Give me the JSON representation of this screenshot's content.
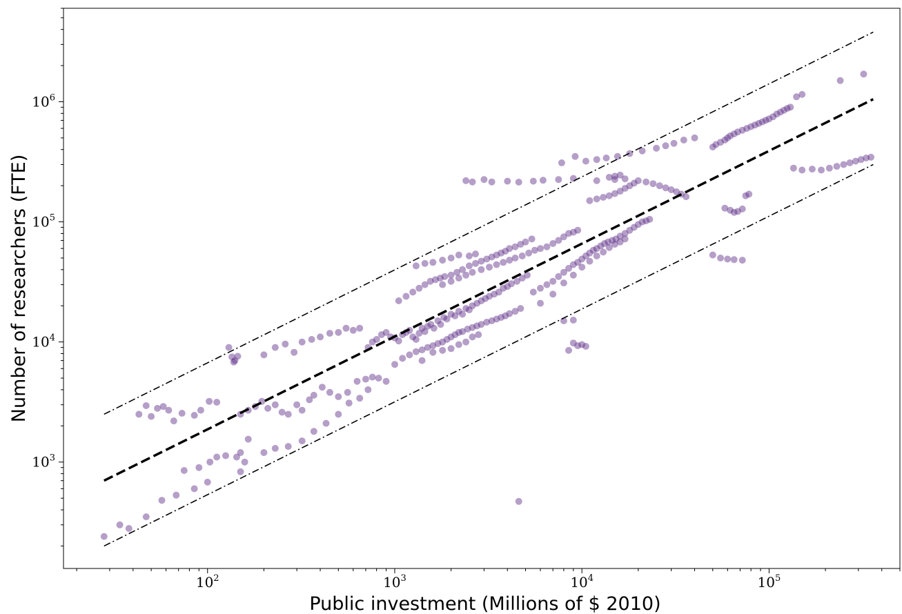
{
  "chart_data": {
    "type": "scatter",
    "title": "",
    "xlabel": "Public investment (Millions of $ 2010)",
    "ylabel": "Number of researchers (FTE)",
    "xscale": "log",
    "yscale": "log",
    "xlim": [
      17,
      500000
    ],
    "ylim": [
      130,
      6000000
    ],
    "x_ticks": [
      {
        "value": 100,
        "base": "10",
        "exp": "2"
      },
      {
        "value": 1000,
        "base": "10",
        "exp": "3"
      },
      {
        "value": 10000,
        "base": "10",
        "exp": "4"
      },
      {
        "value": 100000,
        "base": "10",
        "exp": "5"
      }
    ],
    "y_ticks": [
      {
        "value": 1000,
        "base": "10",
        "exp": "3"
      },
      {
        "value": 10000,
        "base": "10",
        "exp": "4"
      },
      {
        "value": 100000,
        "base": "10",
        "exp": "5"
      },
      {
        "value": 1000000,
        "base": "10",
        "exp": "6"
      }
    ],
    "grid": false,
    "legend": "none",
    "marker_color": "#5b2a86",
    "marker_alpha": 0.45,
    "lines": [
      {
        "style": "dashed",
        "x": [
          28,
          360000
        ],
        "y": [
          700,
          1050000
        ]
      },
      {
        "style": "dashdot",
        "x": [
          28,
          360000
        ],
        "y": [
          2500,
          3800000
        ]
      },
      {
        "style": "dashdot",
        "x": [
          28,
          360000
        ],
        "y": [
          200,
          300000
        ]
      }
    ],
    "points": [
      [
        28,
        240
      ],
      [
        34,
        300
      ],
      [
        38,
        280
      ],
      [
        47,
        350
      ],
      [
        57,
        480
      ],
      [
        68,
        530
      ],
      [
        85,
        600
      ],
      [
        100,
        680
      ],
      [
        75,
        850
      ],
      [
        90,
        900
      ],
      [
        103,
        1000
      ],
      [
        112,
        1100
      ],
      [
        125,
        1130
      ],
      [
        143,
        1100
      ],
      [
        150,
        1200
      ],
      [
        158,
        1000
      ],
      [
        165,
        1550
      ],
      [
        150,
        830
      ],
      [
        43,
        2500
      ],
      [
        47,
        2950
      ],
      [
        50,
        2400
      ],
      [
        54,
        2800
      ],
      [
        58,
        2900
      ],
      [
        62,
        2700
      ],
      [
        66,
        2200
      ],
      [
        73,
        2550
      ],
      [
        85,
        2450
      ],
      [
        92,
        2700
      ],
      [
        102,
        3200
      ],
      [
        112,
        3150
      ],
      [
        130,
        9000
      ],
      [
        135,
        7500
      ],
      [
        140,
        7000
      ],
      [
        145,
        7600
      ],
      [
        138,
        6800
      ],
      [
        150,
        2500
      ],
      [
        165,
        2700
      ],
      [
        180,
        2900
      ],
      [
        195,
        3200
      ],
      [
        210,
        2800
      ],
      [
        230,
        3000
      ],
      [
        250,
        2600
      ],
      [
        270,
        2500
      ],
      [
        300,
        3000
      ],
      [
        320,
        2700
      ],
      [
        350,
        3300
      ],
      [
        370,
        3600
      ],
      [
        410,
        4200
      ],
      [
        450,
        3800
      ],
      [
        500,
        3500
      ],
      [
        560,
        3800
      ],
      [
        630,
        4700
      ],
      [
        700,
        4900
      ],
      [
        760,
        5100
      ],
      [
        820,
        5000
      ],
      [
        900,
        4700
      ],
      [
        200,
        7800
      ],
      [
        230,
        9000
      ],
      [
        260,
        9600
      ],
      [
        290,
        8200
      ],
      [
        320,
        10000
      ],
      [
        360,
        10500
      ],
      [
        400,
        11000
      ],
      [
        450,
        11800
      ],
      [
        500,
        12000
      ],
      [
        550,
        13000
      ],
      [
        600,
        12500
      ],
      [
        650,
        13000
      ],
      [
        200,
        1200
      ],
      [
        230,
        1300
      ],
      [
        270,
        1350
      ],
      [
        320,
        1500
      ],
      [
        370,
        1800
      ],
      [
        430,
        2100
      ],
      [
        500,
        2500
      ],
      [
        570,
        3100
      ],
      [
        650,
        3400
      ],
      [
        720,
        4000
      ],
      [
        720,
        9000
      ],
      [
        760,
        10000
      ],
      [
        800,
        10500
      ],
      [
        850,
        11500
      ],
      [
        900,
        12000
      ],
      [
        950,
        11000
      ],
      [
        1000,
        10800
      ],
      [
        1050,
        10200
      ],
      [
        1100,
        11500
      ],
      [
        1150,
        12000
      ],
      [
        1200,
        12500
      ],
      [
        1250,
        11000
      ],
      [
        1300,
        10500
      ],
      [
        1350,
        11800
      ],
      [
        1400,
        13000
      ],
      [
        1450,
        12200
      ],
      [
        1500,
        13500
      ],
      [
        1560,
        14000
      ],
      [
        1620,
        13000
      ],
      [
        1700,
        15000
      ],
      [
        1760,
        14000
      ],
      [
        1830,
        16000
      ],
      [
        1900,
        15500
      ],
      [
        2000,
        17000
      ],
      [
        2100,
        16500
      ],
      [
        2200,
        18000
      ],
      [
        2300,
        17000
      ],
      [
        2400,
        19000
      ],
      [
        2500,
        18500
      ],
      [
        2600,
        20000
      ],
      [
        2750,
        21000
      ],
      [
        2900,
        22000
      ],
      [
        3050,
        23000
      ],
      [
        3200,
        24000
      ],
      [
        3400,
        25000
      ],
      [
        3600,
        26000
      ],
      [
        3800,
        28000
      ],
      [
        4000,
        29000
      ],
      [
        4200,
        30500
      ],
      [
        4500,
        32000
      ],
      [
        4800,
        34000
      ],
      [
        5100,
        36000
      ],
      [
        1000,
        6500
      ],
      [
        1100,
        7300
      ],
      [
        1200,
        7800
      ],
      [
        1300,
        8300
      ],
      [
        1400,
        8600
      ],
      [
        1500,
        9000
      ],
      [
        1600,
        9300
      ],
      [
        1700,
        9700
      ],
      [
        1800,
        10000
      ],
      [
        1900,
        10500
      ],
      [
        2000,
        11000
      ],
      [
        2100,
        11500
      ],
      [
        2200,
        12000
      ],
      [
        2300,
        12200
      ],
      [
        2450,
        12800
      ],
      [
        2600,
        13200
      ],
      [
        2750,
        13600
      ],
      [
        2900,
        14000
      ],
      [
        3100,
        14600
      ],
      [
        3300,
        15000
      ],
      [
        3500,
        15500
      ],
      [
        3700,
        16000
      ],
      [
        3900,
        16500
      ],
      [
        4100,
        17200
      ],
      [
        4400,
        18000
      ],
      [
        4700,
        19000
      ],
      [
        1050,
        22000
      ],
      [
        1150,
        24000
      ],
      [
        1250,
        26000
      ],
      [
        1350,
        28000
      ],
      [
        1450,
        30000
      ],
      [
        1550,
        32000
      ],
      [
        1650,
        33000
      ],
      [
        1750,
        34000
      ],
      [
        1850,
        35000
      ],
      [
        2000,
        36000
      ],
      [
        2150,
        38000
      ],
      [
        2300,
        40000
      ],
      [
        2500,
        43000
      ],
      [
        2700,
        45000
      ],
      [
        2900,
        47000
      ],
      [
        3100,
        49000
      ],
      [
        3300,
        51000
      ],
      [
        3500,
        53000
      ],
      [
        3700,
        55000
      ],
      [
        3900,
        57000
      ],
      [
        4100,
        60000
      ],
      [
        4400,
        62000
      ],
      [
        4700,
        65000
      ],
      [
        5000,
        68000
      ],
      [
        5400,
        72000
      ],
      [
        1300,
        43000
      ],
      [
        1450,
        45000
      ],
      [
        1600,
        46000
      ],
      [
        1800,
        48000
      ],
      [
        2000,
        50000
      ],
      [
        2200,
        53000
      ],
      [
        2500,
        52000
      ],
      [
        2700,
        54000
      ],
      [
        1400,
        7000
      ],
      [
        1600,
        8200
      ],
      [
        1800,
        8500
      ],
      [
        2000,
        8800
      ],
      [
        2200,
        9500
      ],
      [
        2400,
        10000
      ],
      [
        2600,
        11000
      ],
      [
        2800,
        11500
      ],
      [
        1800,
        30000
      ],
      [
        2000,
        32000
      ],
      [
        2200,
        34000
      ],
      [
        2400,
        36000
      ],
      [
        2600,
        38000
      ],
      [
        2900,
        40000
      ],
      [
        3200,
        42000
      ],
      [
        3500,
        44000
      ],
      [
        3800,
        46000
      ],
      [
        4100,
        48000
      ],
      [
        4400,
        50000
      ],
      [
        4800,
        52000
      ],
      [
        5200,
        55000
      ],
      [
        5600,
        58000
      ],
      [
        6000,
        60000
      ],
      [
        6500,
        62000
      ],
      [
        7000,
        66000
      ],
      [
        7500,
        70000
      ],
      [
        8000,
        75000
      ],
      [
        8500,
        80000
      ],
      [
        9000,
        82000
      ],
      [
        9500,
        85000
      ],
      [
        5500,
        26000
      ],
      [
        6000,
        28000
      ],
      [
        6500,
        30000
      ],
      [
        7000,
        32000
      ],
      [
        7500,
        35000
      ],
      [
        8000,
        38000
      ],
      [
        8500,
        41000
      ],
      [
        9000,
        44000
      ],
      [
        9500,
        46000
      ],
      [
        10000,
        49000
      ],
      [
        10500,
        52000
      ],
      [
        11000,
        55000
      ],
      [
        11500,
        58000
      ],
      [
        12000,
        60000
      ],
      [
        12600,
        63000
      ],
      [
        13200,
        66000
      ],
      [
        13800,
        68000
      ],
      [
        14500,
        70000
      ],
      [
        15200,
        72000
      ],
      [
        16000,
        76000
      ],
      [
        17000,
        80000
      ],
      [
        18000,
        85000
      ],
      [
        19000,
        90000
      ],
      [
        20000,
        95000
      ],
      [
        21000,
        100000
      ],
      [
        22000,
        102000
      ],
      [
        23000,
        105000
      ],
      [
        6000,
        21000
      ],
      [
        7000,
        25000
      ],
      [
        8000,
        31000
      ],
      [
        9000,
        36000
      ],
      [
        10000,
        42000
      ],
      [
        11000,
        47000
      ],
      [
        12000,
        52000
      ],
      [
        13000,
        56000
      ],
      [
        14000,
        61000
      ],
      [
        15000,
        65000
      ],
      [
        16000,
        68000
      ],
      [
        17000,
        72000
      ],
      [
        2400,
        220000
      ],
      [
        2600,
        215000
      ],
      [
        3000,
        225000
      ],
      [
        3300,
        215000
      ],
      [
        4000,
        218000
      ],
      [
        4600,
        214000
      ],
      [
        5500,
        218000
      ],
      [
        6200,
        222000
      ],
      [
        7500,
        225000
      ],
      [
        9000,
        230000
      ],
      [
        12000,
        220000
      ],
      [
        15000,
        225000
      ],
      [
        17000,
        228000
      ],
      [
        7800,
        310000
      ],
      [
        9200,
        350000
      ],
      [
        10500,
        320000
      ],
      [
        12000,
        330000
      ],
      [
        13500,
        340000
      ],
      [
        15500,
        350000
      ],
      [
        18000,
        370000
      ],
      [
        21000,
        390000
      ],
      [
        25000,
        410000
      ],
      [
        28000,
        430000
      ],
      [
        31000,
        450000
      ],
      [
        35000,
        480000
      ],
      [
        40000,
        500000
      ],
      [
        11000,
        150000
      ],
      [
        12000,
        155000
      ],
      [
        13000,
        160000
      ],
      [
        14000,
        165000
      ],
      [
        15000,
        172000
      ],
      [
        16000,
        180000
      ],
      [
        17000,
        190000
      ],
      [
        18000,
        200000
      ],
      [
        19000,
        210000
      ],
      [
        20000,
        220000
      ],
      [
        22000,
        215000
      ],
      [
        24000,
        208000
      ],
      [
        26000,
        200000
      ],
      [
        28000,
        192000
      ],
      [
        30000,
        185000
      ],
      [
        32000,
        178000
      ],
      [
        34000,
        170000
      ],
      [
        36000,
        162000
      ],
      [
        14000,
        235000
      ],
      [
        15000,
        240000
      ],
      [
        16000,
        245000
      ],
      [
        50000,
        420000
      ],
      [
        52000,
        440000
      ],
      [
        55000,
        460000
      ],
      [
        58000,
        480000
      ],
      [
        60000,
        500000
      ],
      [
        62000,
        520000
      ],
      [
        65000,
        540000
      ],
      [
        68000,
        560000
      ],
      [
        72000,
        580000
      ],
      [
        76000,
        600000
      ],
      [
        80000,
        620000
      ],
      [
        84000,
        640000
      ],
      [
        88000,
        660000
      ],
      [
        92000,
        680000
      ],
      [
        96000,
        700000
      ],
      [
        100000,
        720000
      ],
      [
        105000,
        750000
      ],
      [
        110000,
        790000
      ],
      [
        115000,
        820000
      ],
      [
        120000,
        850000
      ],
      [
        125000,
        880000
      ],
      [
        130000,
        900000
      ],
      [
        140000,
        1100000
      ],
      [
        150000,
        1150000
      ],
      [
        50000,
        53000
      ],
      [
        55000,
        50000
      ],
      [
        60000,
        49000
      ],
      [
        65000,
        48500
      ],
      [
        72000,
        48000
      ],
      [
        58000,
        130000
      ],
      [
        62000,
        125000
      ],
      [
        65000,
        120000
      ],
      [
        68000,
        122000
      ],
      [
        72000,
        128000
      ],
      [
        75000,
        165000
      ],
      [
        78000,
        170000
      ],
      [
        135000,
        280000
      ],
      [
        150000,
        270000
      ],
      [
        170000,
        275000
      ],
      [
        190000,
        270000
      ],
      [
        210000,
        280000
      ],
      [
        230000,
        290000
      ],
      [
        250000,
        300000
      ],
      [
        270000,
        310000
      ],
      [
        290000,
        320000
      ],
      [
        310000,
        330000
      ],
      [
        330000,
        340000
      ],
      [
        350000,
        345000
      ],
      [
        240000,
        1500000
      ],
      [
        320000,
        1700000
      ],
      [
        4600,
        470
      ],
      [
        8000,
        15000
      ],
      [
        9000,
        15200
      ],
      [
        8500,
        8500
      ],
      [
        9000,
        9800
      ],
      [
        9500,
        9300
      ],
      [
        10000,
        9500
      ],
      [
        10500,
        9200
      ]
    ]
  }
}
